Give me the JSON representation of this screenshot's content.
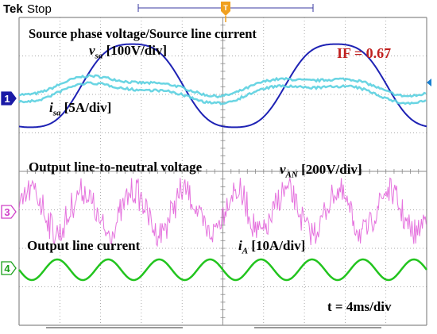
{
  "header": {
    "brand": "Tek",
    "status": "Stop",
    "trigger_marker": "T"
  },
  "annotations": {
    "source_title": "Source phase voltage/Source line current",
    "vsa_symbol": "v",
    "vsa_sub": "sa",
    "vsa_scale": "[100V/div]",
    "isa_symbol": "i",
    "isa_sub": "sa",
    "isa_scale": "[5A/div]",
    "if_value": "IF = 0.67",
    "output_voltage_title": "Output line-to-neutral voltage",
    "van_symbol": "v",
    "van_sub": "AN",
    "van_scale": "[200V/div]",
    "output_current_title": "Output line current",
    "ia_symbol": "i",
    "ia_sub": "A",
    "ia_scale": "[10A/div]",
    "timebase": "t = 4ms/div"
  },
  "channels": [
    {
      "id": "ch1",
      "label": "1",
      "color": "#1a1aa6"
    },
    {
      "id": "ch3",
      "label": "3",
      "color": "#d040c8"
    },
    {
      "id": "ch4",
      "label": "4",
      "color": "#1aa01a"
    }
  ],
  "colors": {
    "vsa": "#1e22b4",
    "isa": "#5ad0e0",
    "van": "#e05ad8",
    "ia": "#22c41e",
    "grid": "#8a8a8a",
    "if": "#c0201f"
  },
  "chart_data": {
    "type": "line",
    "x_unit": "ms",
    "x_divisions": 10,
    "time_per_div_ms": 4,
    "grid": true,
    "series": [
      {
        "name": "vsa",
        "signal": "sinusoid",
        "amplitude_div": 1.7,
        "period_div": 5.0,
        "phase_deg": 0
      },
      {
        "name": "isa",
        "signal": "sinusoid",
        "amplitude_div": 0.55,
        "period_div": 5.0,
        "phase_deg": -20
      },
      {
        "name": "vAN",
        "signal": "multilevel PWM",
        "fundamental_period_div": 1.25,
        "peak_div": 1.1
      },
      {
        "name": "iA",
        "signal": "sinusoid",
        "amplitude_div": 0.28,
        "period_div": 1.25
      }
    ]
  }
}
